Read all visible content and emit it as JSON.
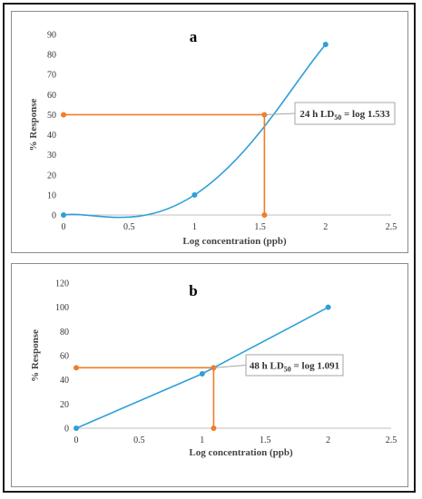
{
  "chart_data": [
    {
      "type": "line",
      "panel_label": "a",
      "xlabel": "Log concentration (ppb)",
      "ylabel": "% Response",
      "xlim": [
        0,
        2.5
      ],
      "ylim": [
        0,
        90
      ],
      "xticks": [
        "0",
        "0.5",
        "1",
        "1.5",
        "2",
        "2.5"
      ],
      "yticks": [
        "0",
        "10",
        "20",
        "30",
        "40",
        "50",
        "60",
        "70",
        "80",
        "90"
      ],
      "series": [
        {
          "type": "smooth-line",
          "color": "#2e9fd8",
          "x": [
            0,
            1,
            2
          ],
          "y": [
            0,
            10,
            85
          ]
        },
        {
          "type": "reference",
          "color": "#f07d28",
          "x": [
            0,
            1.533,
            1.533
          ],
          "y": [
            50,
            50,
            0
          ]
        }
      ],
      "annotation": {
        "text": "24 h LD50 = log 1.533",
        "prefix": "24 h LD",
        "subscript": "50",
        "suffix": " = log 1.533",
        "x": 1.533,
        "y": 50
      }
    },
    {
      "type": "line",
      "panel_label": "b",
      "xlabel": "Log concentration (ppb)",
      "ylabel": "% Response",
      "xlim": [
        0,
        2.5
      ],
      "ylim": [
        0,
        120
      ],
      "xticks": [
        "0",
        "0.5",
        "1",
        "1.5",
        "2",
        "2.5"
      ],
      "yticks": [
        "0",
        "20",
        "40",
        "60",
        "80",
        "100",
        "120"
      ],
      "series": [
        {
          "type": "line",
          "color": "#2e9fd8",
          "x": [
            0,
            1,
            2
          ],
          "y": [
            0,
            45,
            100
          ]
        },
        {
          "type": "reference",
          "color": "#f07d28",
          "x": [
            0,
            1.091,
            1.091
          ],
          "y": [
            50,
            50,
            0
          ]
        }
      ],
      "annotation": {
        "text": "48 h LD50 = log 1.091",
        "prefix": "48 h LD",
        "subscript": "50",
        "suffix": " = log 1.091",
        "x": 1.091,
        "y": 50
      }
    }
  ]
}
